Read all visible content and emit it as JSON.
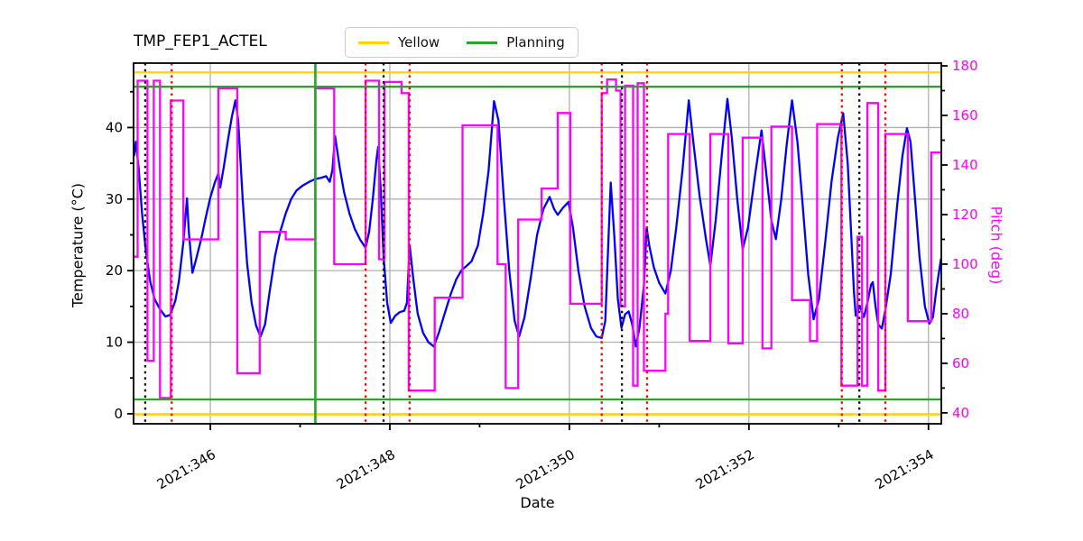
{
  "figure": {
    "title": "TMP_FEP1_ACTEL",
    "xlabel": "Date",
    "ylabel_left": "Temperature (°C)",
    "ylabel_right": "Pitch (deg)"
  },
  "legend": {
    "items": [
      {
        "label": "Yellow",
        "color": "#ffd700"
      },
      {
        "label": "Planning",
        "color": "#28a428"
      }
    ]
  },
  "colors": {
    "temperature_line": "#0000ff",
    "pitch_line": "#ff00ff",
    "yellow_limit": "#ffd700",
    "planning_limit": "#28a428",
    "red_event": "#ff0000",
    "black_event": "#000000",
    "grid": "#b0b0b0",
    "spine": "#000000",
    "right_tick_label": "#ff00ff",
    "left_tick_label": "#000000"
  },
  "chart_data": {
    "type": "line",
    "title": "TMP_FEP1_ACTEL",
    "xlabel": "Date",
    "grid": true,
    "legend_position": "top center",
    "xlim": [
      345.145,
      354.143
    ],
    "x_ticks": [
      {
        "value": 346,
        "label": "2021:346"
      },
      {
        "value": 348,
        "label": "2021:348"
      },
      {
        "value": 350,
        "label": "2021:350"
      },
      {
        "value": 352,
        "label": "2021:352"
      },
      {
        "value": 354,
        "label": "2021:354"
      }
    ],
    "x_minor_ticks": [
      347,
      349,
      351,
      353
    ],
    "left_axis": {
      "label": "Temperature (°C)",
      "lim": [
        -1.4,
        49.0
      ],
      "ticks": [
        0,
        10,
        20,
        30,
        40
      ],
      "minor_ticks": [
        5,
        15,
        25,
        35,
        45
      ]
    },
    "right_axis": {
      "label": "Pitch (deg)",
      "lim": [
        35.6,
        181.1
      ],
      "ticks": [
        40,
        60,
        80,
        100,
        120,
        140,
        160,
        180
      ],
      "minor_ticks": [
        50,
        70,
        90,
        110,
        130,
        150,
        170
      ]
    },
    "limit_lines": [
      {
        "name": "yellow-high",
        "value": 47.7,
        "color": "#ffd700"
      },
      {
        "name": "yellow-low",
        "value": -0.1,
        "color": "#ffd700"
      },
      {
        "name": "planning-high",
        "value": 45.7,
        "color": "#28a428"
      },
      {
        "name": "planning-low",
        "value": 2.0,
        "color": "#28a428"
      }
    ],
    "event_lines": [
      {
        "x": 345.275,
        "style": "dotted",
        "color": "#000000"
      },
      {
        "x": 345.57,
        "style": "dotted",
        "color": "#ff0000"
      },
      {
        "x": 347.17,
        "style": "solid",
        "color": "#28a428"
      },
      {
        "x": 347.73,
        "style": "dotted",
        "color": "#ff0000"
      },
      {
        "x": 347.93,
        "style": "dotted",
        "color": "#000000"
      },
      {
        "x": 348.22,
        "style": "dotted",
        "color": "#ff0000"
      },
      {
        "x": 350.36,
        "style": "dotted",
        "color": "#ff0000"
      },
      {
        "x": 350.585,
        "style": "dotted",
        "color": "#000000"
      },
      {
        "x": 350.865,
        "style": "dotted",
        "color": "#ff0000"
      },
      {
        "x": 353.035,
        "style": "dotted",
        "color": "#ff0000"
      },
      {
        "x": 353.23,
        "style": "dotted",
        "color": "#000000"
      },
      {
        "x": 353.52,
        "style": "dotted",
        "color": "#ff0000"
      }
    ],
    "series": [
      {
        "name": "temperature",
        "axis": "left",
        "color": "#0000ff",
        "style": "line",
        "points": [
          [
            345.15,
            36.0
          ],
          [
            345.17,
            38.0
          ],
          [
            345.2,
            34.5
          ],
          [
            345.24,
            28.0
          ],
          [
            345.28,
            23.0
          ],
          [
            345.33,
            18.5
          ],
          [
            345.38,
            16.0
          ],
          [
            345.44,
            14.6
          ],
          [
            345.5,
            13.6
          ],
          [
            345.55,
            13.8
          ],
          [
            345.57,
            14.4
          ],
          [
            345.61,
            15.8
          ],
          [
            345.65,
            18.5
          ],
          [
            345.7,
            24.0
          ],
          [
            345.74,
            30.1
          ],
          [
            345.76,
            25.5
          ],
          [
            345.8,
            19.7
          ],
          [
            345.84,
            21.5
          ],
          [
            345.9,
            24.5
          ],
          [
            345.95,
            27.5
          ],
          [
            346.0,
            30.2
          ],
          [
            346.05,
            32.3
          ],
          [
            346.09,
            33.6
          ],
          [
            346.11,
            31.6
          ],
          [
            346.15,
            34.5
          ],
          [
            346.2,
            38.5
          ],
          [
            346.24,
            41.5
          ],
          [
            346.28,
            43.8
          ],
          [
            346.31,
            41.0
          ],
          [
            346.36,
            30.0
          ],
          [
            346.41,
            21.0
          ],
          [
            346.46,
            15.5
          ],
          [
            346.51,
            12.3
          ],
          [
            346.56,
            10.8
          ],
          [
            346.61,
            12.5
          ],
          [
            346.66,
            17.0
          ],
          [
            346.72,
            22.0
          ],
          [
            346.78,
            25.5
          ],
          [
            346.84,
            28.0
          ],
          [
            346.9,
            30.0
          ],
          [
            346.96,
            31.2
          ],
          [
            347.03,
            31.9
          ],
          [
            347.1,
            32.4
          ],
          [
            347.17,
            32.8
          ],
          [
            347.24,
            33.0
          ],
          [
            347.29,
            33.2
          ],
          [
            347.33,
            32.4
          ],
          [
            347.36,
            34.0
          ],
          [
            347.39,
            38.8
          ],
          [
            347.44,
            34.5
          ],
          [
            347.49,
            31.0
          ],
          [
            347.55,
            28.0
          ],
          [
            347.61,
            25.8
          ],
          [
            347.67,
            24.3
          ],
          [
            347.73,
            23.2
          ],
          [
            347.77,
            25.5
          ],
          [
            347.81,
            30.0
          ],
          [
            347.85,
            35.5
          ],
          [
            347.87,
            37.3
          ],
          [
            347.9,
            31.0
          ],
          [
            347.93,
            22.0
          ],
          [
            347.97,
            15.5
          ],
          [
            348.01,
            12.7
          ],
          [
            348.06,
            13.7
          ],
          [
            348.11,
            14.2
          ],
          [
            348.16,
            14.4
          ],
          [
            348.19,
            15.5
          ],
          [
            348.22,
            23.6
          ],
          [
            348.26,
            19.0
          ],
          [
            348.31,
            14.0
          ],
          [
            348.37,
            11.3
          ],
          [
            348.43,
            10.0
          ],
          [
            348.49,
            9.4
          ],
          [
            348.55,
            11.5
          ],
          [
            348.61,
            14.0
          ],
          [
            348.68,
            16.8
          ],
          [
            348.74,
            18.8
          ],
          [
            348.8,
            20.1
          ],
          [
            348.85,
            20.6
          ],
          [
            348.91,
            21.3
          ],
          [
            348.98,
            23.5
          ],
          [
            349.04,
            28.0
          ],
          [
            349.1,
            34.0
          ],
          [
            349.16,
            43.7
          ],
          [
            349.21,
            41.0
          ],
          [
            349.27,
            30.0
          ],
          [
            349.33,
            20.0
          ],
          [
            349.39,
            13.0
          ],
          [
            349.44,
            10.8
          ],
          [
            349.5,
            13.5
          ],
          [
            349.57,
            19.0
          ],
          [
            349.64,
            25.0
          ],
          [
            349.71,
            28.6
          ],
          [
            349.78,
            30.3
          ],
          [
            349.83,
            28.6
          ],
          [
            349.87,
            27.8
          ],
          [
            349.93,
            28.8
          ],
          [
            349.99,
            29.6
          ],
          [
            350.04,
            26.0
          ],
          [
            350.1,
            20.0
          ],
          [
            350.17,
            15.0
          ],
          [
            350.24,
            12.0
          ],
          [
            350.3,
            10.8
          ],
          [
            350.36,
            10.6
          ],
          [
            350.4,
            13.0
          ],
          [
            350.44,
            26.0
          ],
          [
            350.46,
            32.3
          ],
          [
            350.5,
            25.0
          ],
          [
            350.54,
            16.0
          ],
          [
            350.58,
            12.0
          ],
          [
            350.62,
            13.9
          ],
          [
            350.66,
            14.3
          ],
          [
            350.7,
            12.5
          ],
          [
            350.74,
            9.4
          ],
          [
            350.78,
            12.0
          ],
          [
            350.83,
            18.0
          ],
          [
            350.86,
            26.0
          ],
          [
            350.89,
            23.5
          ],
          [
            350.94,
            20.5
          ],
          [
            351.0,
            18.3
          ],
          [
            351.07,
            16.8
          ],
          [
            351.13,
            20.0
          ],
          [
            351.19,
            26.0
          ],
          [
            351.26,
            34.0
          ],
          [
            351.33,
            43.8
          ],
          [
            351.38,
            38.0
          ],
          [
            351.45,
            30.5
          ],
          [
            351.52,
            24.5
          ],
          [
            351.57,
            20.7
          ],
          [
            351.63,
            27.0
          ],
          [
            351.7,
            36.5
          ],
          [
            351.76,
            44.0
          ],
          [
            351.81,
            38.5
          ],
          [
            351.87,
            30.0
          ],
          [
            351.93,
            23.0
          ],
          [
            351.99,
            26.0
          ],
          [
            352.07,
            33.5
          ],
          [
            352.14,
            39.6
          ],
          [
            352.19,
            34.0
          ],
          [
            352.25,
            27.0
          ],
          [
            352.3,
            24.4
          ],
          [
            352.36,
            30.0
          ],
          [
            352.42,
            37.5
          ],
          [
            352.48,
            43.8
          ],
          [
            352.54,
            38.0
          ],
          [
            352.6,
            29.0
          ],
          [
            352.66,
            19.5
          ],
          [
            352.72,
            13.2
          ],
          [
            352.78,
            16.0
          ],
          [
            352.85,
            24.0
          ],
          [
            352.92,
            32.5
          ],
          [
            352.99,
            38.5
          ],
          [
            353.05,
            42.0
          ],
          [
            353.1,
            35.0
          ],
          [
            353.14,
            25.0
          ],
          [
            353.17,
            17.0
          ],
          [
            353.19,
            13.7
          ],
          [
            353.22,
            14.6
          ],
          [
            353.24,
            15.0
          ],
          [
            353.26,
            14.2
          ],
          [
            353.28,
            13.5
          ],
          [
            353.32,
            15.5
          ],
          [
            353.36,
            18.0
          ],
          [
            353.38,
            18.4
          ],
          [
            353.41,
            15.0
          ],
          [
            353.44,
            12.5
          ],
          [
            353.48,
            11.9
          ],
          [
            353.52,
            14.5
          ],
          [
            353.58,
            19.5
          ],
          [
            353.65,
            29.0
          ],
          [
            353.71,
            36.0
          ],
          [
            353.76,
            39.9
          ],
          [
            353.8,
            38.0
          ],
          [
            353.85,
            30.0
          ],
          [
            353.9,
            22.0
          ],
          [
            353.96,
            15.0
          ],
          [
            354.01,
            12.6
          ],
          [
            354.05,
            13.5
          ],
          [
            354.09,
            17.5
          ],
          [
            354.14,
            21.7
          ]
        ]
      },
      {
        "name": "pitch",
        "axis": "right",
        "color": "#ff00ff",
        "style": "step",
        "segments": [
          [
            345.15,
            345.19,
            103
          ],
          [
            345.19,
            345.3,
            174
          ],
          [
            345.3,
            345.37,
            61
          ],
          [
            345.37,
            345.44,
            174
          ],
          [
            345.44,
            345.56,
            46
          ],
          [
            345.56,
            345.7,
            166
          ],
          [
            345.7,
            346.09,
            110
          ],
          [
            346.09,
            346.3,
            171
          ],
          [
            346.3,
            346.55,
            56
          ],
          [
            346.55,
            346.84,
            113
          ],
          [
            346.84,
            347.17,
            110
          ],
          [
            347.17,
            347.38,
            171
          ],
          [
            347.38,
            347.73,
            100
          ],
          [
            347.73,
            347.88,
            174
          ],
          [
            347.88,
            347.94,
            102
          ],
          [
            347.94,
            348.13,
            173.5
          ],
          [
            348.13,
            348.21,
            169
          ],
          [
            348.21,
            348.5,
            49
          ],
          [
            348.5,
            348.81,
            86.5
          ],
          [
            348.81,
            349.2,
            156
          ],
          [
            349.2,
            349.29,
            100
          ],
          [
            349.29,
            349.43,
            50
          ],
          [
            349.43,
            349.69,
            118
          ],
          [
            349.69,
            349.87,
            130.5
          ],
          [
            349.87,
            350.01,
            161
          ],
          [
            350.01,
            350.36,
            84
          ],
          [
            350.36,
            350.42,
            169
          ],
          [
            350.42,
            350.52,
            174.5
          ],
          [
            350.52,
            350.57,
            170
          ],
          [
            350.57,
            350.62,
            83
          ],
          [
            350.62,
            350.71,
            172
          ],
          [
            350.71,
            350.76,
            51
          ],
          [
            350.76,
            350.83,
            173
          ],
          [
            350.83,
            351.07,
            57
          ],
          [
            351.07,
            351.1,
            80
          ],
          [
            351.1,
            351.34,
            152.5
          ],
          [
            351.34,
            351.57,
            69
          ],
          [
            351.57,
            351.77,
            152.5
          ],
          [
            351.77,
            351.93,
            68
          ],
          [
            351.93,
            352.15,
            151
          ],
          [
            352.15,
            352.25,
            66
          ],
          [
            352.25,
            352.48,
            155.5
          ],
          [
            352.48,
            352.68,
            85.5
          ],
          [
            352.68,
            352.76,
            69
          ],
          [
            352.76,
            353.03,
            156.5
          ],
          [
            353.03,
            353.21,
            51
          ],
          [
            353.21,
            353.26,
            111
          ],
          [
            353.26,
            353.32,
            51
          ],
          [
            353.32,
            353.44,
            165
          ],
          [
            353.44,
            353.52,
            49
          ],
          [
            353.52,
            353.77,
            152.5
          ],
          [
            353.77,
            354.03,
            77
          ],
          [
            354.03,
            354.14,
            145
          ]
        ]
      }
    ]
  }
}
